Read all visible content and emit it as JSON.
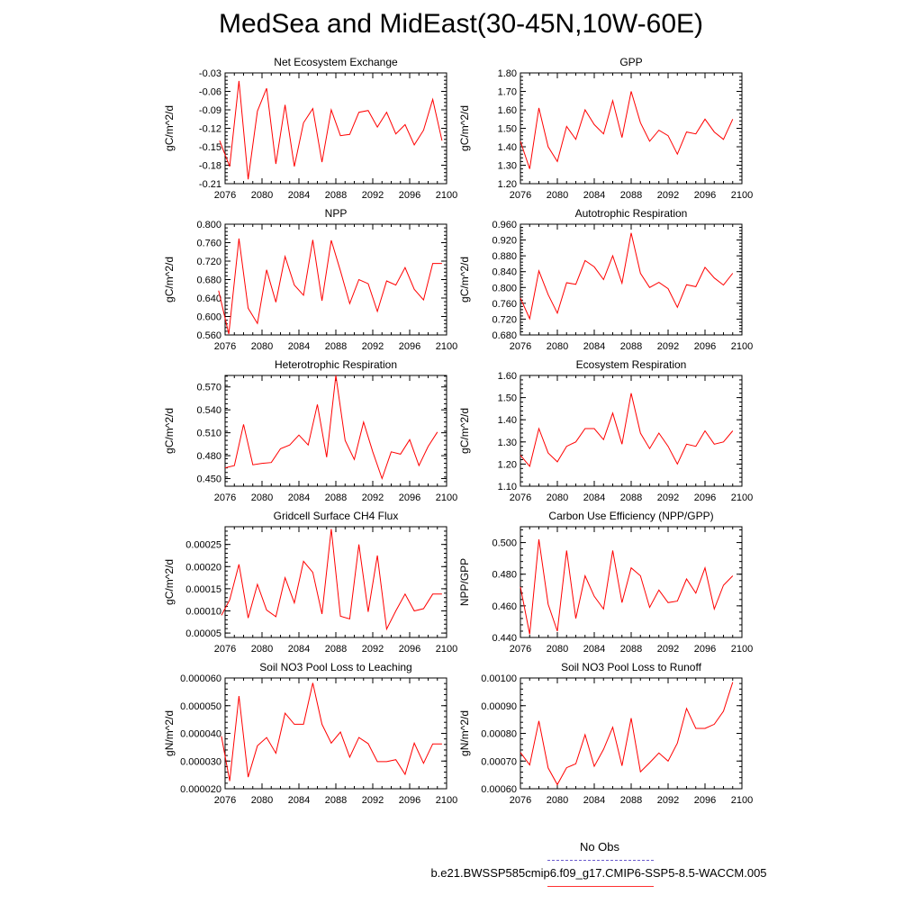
{
  "figure": {
    "title": "MedSea and MidEast(30-45N,10W-60E)",
    "legend": {
      "obs_label": "No Obs",
      "case_label": "b.e21.BWSSP585cmip6.f09_g17.CMIP6-SSP5-8.5-WACCM.005",
      "obs_color": "#6a5acd",
      "case_color": "#ff0000"
    }
  },
  "chart_data": [
    {
      "type": "line",
      "title": "Net Ecosystem Exchange",
      "ylabel": "gC/m^2/d",
      "xlim": [
        2076,
        2100
      ],
      "ylim": [
        -0.21,
        -0.03
      ],
      "xticks": [
        "2076",
        "2080",
        "2084",
        "2088",
        "2092",
        "2096",
        "2100"
      ],
      "yticks": [
        "-0.21",
        "-0.18",
        "-0.15",
        "-0.12",
        "-0.09",
        "-0.06",
        "-0.03"
      ],
      "color": "#ff0000",
      "x": [
        2075.4,
        2076.5,
        2077.5,
        2078.5,
        2079.5,
        2080.5,
        2081.5,
        2082.5,
        2083.5,
        2084.5,
        2085.5,
        2086.5,
        2087.5,
        2088.5,
        2089.5,
        2090.5,
        2091.5,
        2092.5,
        2093.5,
        2094.5,
        2095.5,
        2096.5,
        2097.5,
        2098.5,
        2099.5
      ],
      "y": [
        -0.14,
        -0.182,
        -0.043,
        -0.203,
        -0.092,
        -0.055,
        -0.178,
        -0.082,
        -0.182,
        -0.111,
        -0.088,
        -0.175,
        -0.09,
        -0.132,
        -0.13,
        -0.094,
        -0.091,
        -0.118,
        -0.094,
        -0.129,
        -0.114,
        -0.147,
        -0.123,
        -0.073,
        -0.14
      ]
    },
    {
      "type": "line",
      "title": "GPP",
      "ylabel": "gC/m^2/d",
      "xlim": [
        2076,
        2100
      ],
      "ylim": [
        1.2,
        1.8
      ],
      "xticks": [
        "2076",
        "2080",
        "2084",
        "2088",
        "2092",
        "2096",
        "2100"
      ],
      "yticks": [
        "1.20",
        "1.30",
        "1.40",
        "1.50",
        "1.60",
        "1.70",
        "1.80"
      ],
      "color": "#ff0000",
      "x": [
        2076,
        2077,
        2078,
        2079,
        2080,
        2081,
        2082,
        2083,
        2084,
        2085,
        2086,
        2087,
        2088,
        2089,
        2090,
        2091,
        2092,
        2093,
        2094,
        2095,
        2096,
        2097,
        2098,
        2099
      ],
      "y": [
        1.43,
        1.28,
        1.61,
        1.4,
        1.32,
        1.51,
        1.44,
        1.6,
        1.52,
        1.47,
        1.65,
        1.45,
        1.7,
        1.53,
        1.43,
        1.49,
        1.46,
        1.36,
        1.48,
        1.47,
        1.55,
        1.48,
        1.44,
        1.55
      ]
    },
    {
      "type": "line",
      "title": "NPP",
      "ylabel": "gC/m^2/d",
      "xlim": [
        2076,
        2100
      ],
      "ylim": [
        0.56,
        0.8
      ],
      "xticks": [
        "2076",
        "2080",
        "2084",
        "2088",
        "2092",
        "2096",
        "2100"
      ],
      "yticks": [
        "0.560",
        "0.600",
        "0.640",
        "0.680",
        "0.720",
        "0.760",
        "0.800"
      ],
      "color": "#ff0000",
      "x": [
        2075.3,
        2076.4,
        2077.5,
        2078.5,
        2079.5,
        2080.5,
        2081.5,
        2082.5,
        2083.5,
        2084.5,
        2085.5,
        2086.5,
        2087.5,
        2088.5,
        2089.5,
        2090.5,
        2091.5,
        2092.5,
        2093.5,
        2094.5,
        2095.5,
        2096.5,
        2097.5,
        2098.5,
        2099.5
      ],
      "y": [
        0.656,
        0.562,
        0.769,
        0.618,
        0.585,
        0.701,
        0.631,
        0.73,
        0.668,
        0.646,
        0.766,
        0.634,
        0.765,
        0.699,
        0.628,
        0.68,
        0.671,
        0.611,
        0.677,
        0.668,
        0.706,
        0.659,
        0.636,
        0.715,
        0.715
      ]
    },
    {
      "type": "line",
      "title": "Autotrophic Respiration",
      "ylabel": "gC/m^2/d",
      "xlim": [
        2076,
        2100
      ],
      "ylim": [
        0.68,
        0.96
      ],
      "xticks": [
        "2076",
        "2080",
        "2084",
        "2088",
        "2092",
        "2096",
        "2100"
      ],
      "yticks": [
        "0.680",
        "0.720",
        "0.760",
        "0.800",
        "0.840",
        "0.880",
        "0.920",
        "0.960"
      ],
      "color": "#ff0000",
      "x": [
        2076,
        2077,
        2078,
        2079,
        2080,
        2081,
        2082,
        2083,
        2084,
        2085,
        2086,
        2087,
        2088,
        2089,
        2090,
        2091,
        2092,
        2093,
        2094,
        2095,
        2096,
        2097,
        2098,
        2099
      ],
      "y": [
        0.773,
        0.721,
        0.842,
        0.782,
        0.735,
        0.812,
        0.808,
        0.868,
        0.852,
        0.82,
        0.88,
        0.811,
        0.938,
        0.836,
        0.8,
        0.813,
        0.797,
        0.75,
        0.807,
        0.802,
        0.851,
        0.824,
        0.806,
        0.836
      ]
    },
    {
      "type": "line",
      "title": "Heterotrophic Respiration",
      "ylabel": "gC/m^2/d",
      "xlim": [
        2076,
        2100
      ],
      "ylim": [
        0.44,
        0.585
      ],
      "xticks": [
        "2076",
        "2080",
        "2084",
        "2088",
        "2092",
        "2096",
        "2100"
      ],
      "yticks": [
        "0.450",
        "0.480",
        "0.510",
        "0.540",
        "0.570"
      ],
      "color": "#ff0000",
      "x": [
        2076,
        2077,
        2078,
        2079,
        2080,
        2081,
        2082,
        2083,
        2084,
        2085,
        2086,
        2087,
        2088,
        2089,
        2090,
        2091,
        2092,
        2093,
        2094,
        2095,
        2096,
        2097,
        2098,
        2099
      ],
      "y": [
        0.464,
        0.467,
        0.521,
        0.468,
        0.47,
        0.471,
        0.489,
        0.494,
        0.507,
        0.494,
        0.547,
        0.478,
        0.585,
        0.5,
        0.475,
        0.524,
        0.485,
        0.45,
        0.485,
        0.482,
        0.501,
        0.467,
        0.492,
        0.511
      ]
    },
    {
      "type": "line",
      "title": "Ecosystem Respiration",
      "ylabel": "gC/m^2/d",
      "xlim": [
        2076,
        2100
      ],
      "ylim": [
        1.1,
        1.6
      ],
      "xticks": [
        "2076",
        "2080",
        "2084",
        "2088",
        "2092",
        "2096",
        "2100"
      ],
      "yticks": [
        "1.10",
        "1.20",
        "1.30",
        "1.40",
        "1.50",
        "1.60"
      ],
      "color": "#ff0000",
      "x": [
        2076,
        2077,
        2078,
        2079,
        2080,
        2081,
        2082,
        2083,
        2084,
        2085,
        2086,
        2087,
        2088,
        2089,
        2090,
        2091,
        2092,
        2093,
        2094,
        2095,
        2096,
        2097,
        2098,
        2099
      ],
      "y": [
        1.24,
        1.19,
        1.36,
        1.25,
        1.21,
        1.28,
        1.3,
        1.36,
        1.36,
        1.31,
        1.43,
        1.29,
        1.52,
        1.34,
        1.27,
        1.34,
        1.28,
        1.2,
        1.29,
        1.28,
        1.35,
        1.29,
        1.3,
        1.35
      ]
    },
    {
      "type": "line",
      "title": "Gridcell Surface CH4 Flux",
      "ylabel": "gC/m^2/d",
      "xlim": [
        2076,
        2100
      ],
      "ylim": [
        4e-05,
        0.00029
      ],
      "xticks": [
        "2076",
        "2080",
        "2084",
        "2088",
        "2092",
        "2096",
        "2100"
      ],
      "yticks": [
        "0.00005",
        "0.00010",
        "0.00015",
        "0.00020",
        "0.00025"
      ],
      "color": "#ff0000",
      "x": [
        2075.6,
        2076.5,
        2077.5,
        2078.5,
        2079.5,
        2080.5,
        2081.5,
        2082.5,
        2083.5,
        2084.5,
        2085.5,
        2086.5,
        2087.5,
        2088.5,
        2089.5,
        2090.5,
        2091.5,
        2092.5,
        2093.5,
        2094.5,
        2095.5,
        2096.5,
        2097.5,
        2098.5,
        2099.5
      ],
      "y": [
        9e-05,
        0.000125,
        0.000205,
        8.4e-05,
        0.00016,
        0.000102,
        8.7e-05,
        0.000175,
        0.000118,
        0.000212,
        0.000187,
        9.3e-05,
        0.000285,
        8.8e-05,
        8.2e-05,
        0.00025,
        9.8e-05,
        0.000225,
        5.9e-05,
        0.0001,
        0.000138,
        0.0001,
        0.000105,
        0.000138,
        0.000138
      ]
    },
    {
      "type": "line",
      "title": "Carbon Use Efficiency (NPP/GPP)",
      "ylabel": "NPP/GPP",
      "xlim": [
        2076,
        2100
      ],
      "ylim": [
        0.44,
        0.51
      ],
      "xticks": [
        "2076",
        "2080",
        "2084",
        "2088",
        "2092",
        "2096",
        "2100"
      ],
      "yticks": [
        "0.440",
        "0.460",
        "0.480",
        "0.500"
      ],
      "color": "#ff0000",
      "x": [
        2076,
        2077,
        2078,
        2079,
        2080,
        2081,
        2082,
        2083,
        2084,
        2085,
        2086,
        2087,
        2088,
        2089,
        2090,
        2091,
        2092,
        2093,
        2094,
        2095,
        2096,
        2097,
        2098,
        2099
      ],
      "y": [
        0.472,
        0.442,
        0.502,
        0.461,
        0.444,
        0.495,
        0.452,
        0.479,
        0.466,
        0.458,
        0.495,
        0.462,
        0.484,
        0.479,
        0.459,
        0.47,
        0.462,
        0.463,
        0.477,
        0.468,
        0.484,
        0.458,
        0.473,
        0.479
      ]
    },
    {
      "type": "line",
      "title": "Soil NO3 Pool Loss to Leaching",
      "ylabel": "gN/m^2/d",
      "xlim": [
        2076,
        2100
      ],
      "ylim": [
        2e-05,
        6e-05
      ],
      "xticks": [
        "2076",
        "2080",
        "2084",
        "2088",
        "2092",
        "2096",
        "2100"
      ],
      "yticks": [
        "0.000020",
        "0.000030",
        "0.000040",
        "0.000050",
        "0.000060"
      ],
      "color": "#ff0000",
      "x": [
        2075.6,
        2076.5,
        2077.5,
        2078.5,
        2079.5,
        2080.5,
        2081.5,
        2082.5,
        2083.5,
        2084.5,
        2085.5,
        2086.5,
        2087.5,
        2088.5,
        2089.5,
        2090.5,
        2091.5,
        2092.5,
        2093.5,
        2094.5,
        2095.5,
        2096.5,
        2097.5,
        2098.5,
        2099.5
      ],
      "y": [
        3.9e-05,
        2.28e-05,
        5.35e-05,
        2.42e-05,
        3.55e-05,
        3.85e-05,
        3.28e-05,
        4.73e-05,
        4.33e-05,
        4.33e-05,
        5.82e-05,
        4.33e-05,
        3.65e-05,
        4.05e-05,
        3.14e-05,
        3.85e-05,
        3.63e-05,
        2.98e-05,
        2.98e-05,
        3.05e-05,
        2.52e-05,
        3.65e-05,
        2.92e-05,
        3.62e-05,
        3.62e-05
      ]
    },
    {
      "type": "line",
      "title": "Soil NO3 Pool Loss to Runoff",
      "ylabel": "gN/m^2/d",
      "xlim": [
        2076,
        2100
      ],
      "ylim": [
        0.0006,
        0.001
      ],
      "xticks": [
        "2076",
        "2080",
        "2084",
        "2088",
        "2092",
        "2096",
        "2100"
      ],
      "yticks": [
        "0.00060",
        "0.00070",
        "0.00080",
        "0.00090",
        "0.00100"
      ],
      "color": "#ff0000",
      "x": [
        2076,
        2077,
        2078,
        2079,
        2080,
        2081,
        2082,
        2083,
        2084,
        2085,
        2086,
        2087,
        2088,
        2089,
        2090,
        2091,
        2092,
        2093,
        2094,
        2095,
        2096,
        2097,
        2098,
        2099
      ],
      "y": [
        0.000731,
        0.000686,
        0.000845,
        0.000675,
        0.000615,
        0.000676,
        0.00069,
        0.000795,
        0.000681,
        0.000742,
        0.000822,
        0.000683,
        0.000855,
        0.000661,
        0.000694,
        0.000729,
        0.0007,
        0.000765,
        0.00089,
        0.000818,
        0.000818,
        0.000833,
        0.00088,
        0.000985
      ]
    }
  ]
}
